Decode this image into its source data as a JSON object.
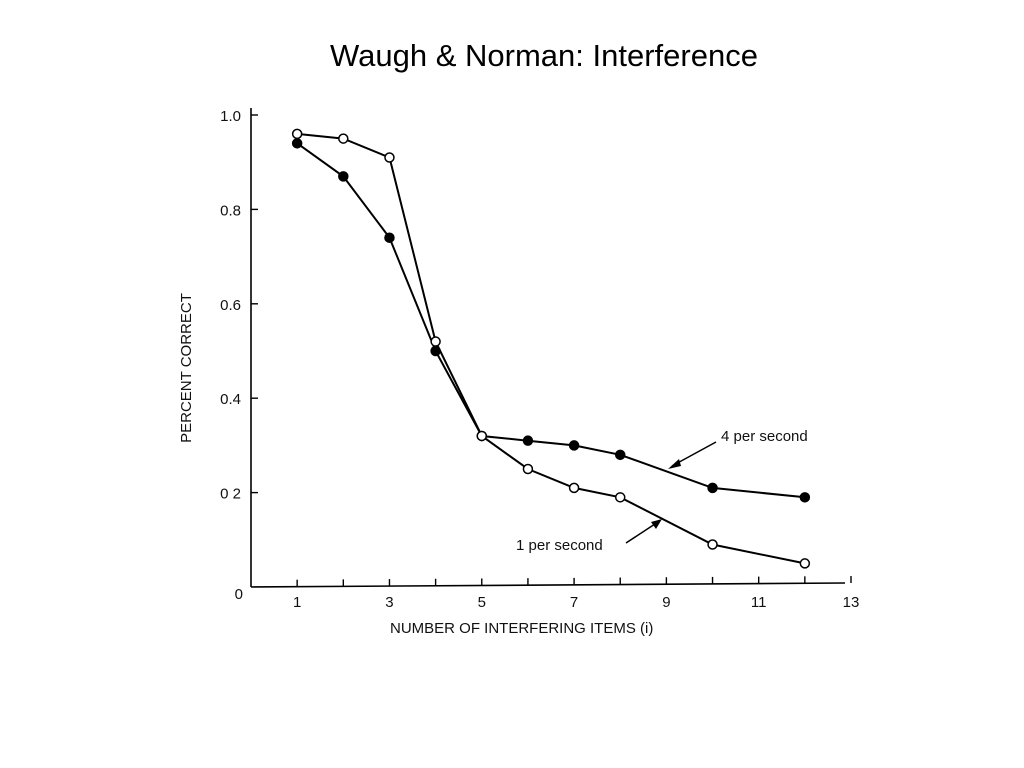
{
  "slide": {
    "title": "Waugh & Norman: Interference"
  },
  "chart_data": {
    "type": "line",
    "title": "",
    "xlabel": "NUMBER OF INTERFERING ITEMS (i)",
    "ylabel": "PERCENT CORRECT",
    "xlim": [
      0,
      13
    ],
    "ylim": [
      0,
      1.0
    ],
    "x_ticks": [
      1,
      3,
      5,
      7,
      9,
      11,
      13
    ],
    "y_ticks": [
      0,
      0.2,
      0.4,
      0.6,
      0.8,
      1.0
    ],
    "x_tick_labels": [
      "1",
      "3",
      "5",
      "7",
      "9",
      "11",
      "13"
    ],
    "y_tick_labels": [
      "0",
      "0 2",
      "0.4",
      "0.6",
      "0.8",
      "1.0"
    ],
    "grid": false,
    "series": [
      {
        "name": "4 per second",
        "marker": "filled-circle",
        "color": "#000000",
        "points": [
          {
            "x": 1,
            "y": 0.94
          },
          {
            "x": 2,
            "y": 0.87
          },
          {
            "x": 3,
            "y": 0.74
          },
          {
            "x": 4,
            "y": 0.5
          },
          {
            "x": 5,
            "y": 0.32
          },
          {
            "x": 6,
            "y": 0.31
          },
          {
            "x": 7,
            "y": 0.3
          },
          {
            "x": 8,
            "y": 0.28
          },
          {
            "x": 10,
            "y": 0.21
          },
          {
            "x": 12,
            "y": 0.19
          }
        ]
      },
      {
        "name": "1 per second",
        "marker": "open-circle",
        "color": "#000000",
        "points": [
          {
            "x": 1,
            "y": 0.96
          },
          {
            "x": 2,
            "y": 0.95
          },
          {
            "x": 3,
            "y": 0.91
          },
          {
            "x": 4,
            "y": 0.52
          },
          {
            "x": 5,
            "y": 0.32
          },
          {
            "x": 6,
            "y": 0.25
          },
          {
            "x": 7,
            "y": 0.21
          },
          {
            "x": 8,
            "y": 0.19
          },
          {
            "x": 10,
            "y": 0.09
          },
          {
            "x": 12,
            "y": 0.05
          }
        ]
      }
    ]
  }
}
